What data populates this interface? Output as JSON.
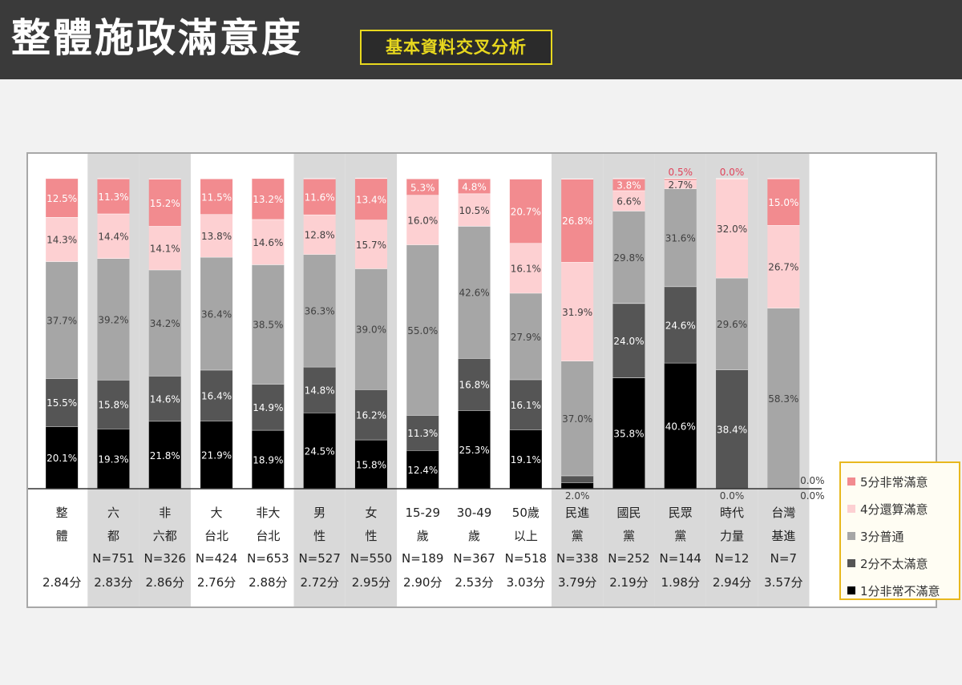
{
  "header": {
    "title": "整體施政滿意度",
    "subtitle": "基本資料交叉分析"
  },
  "colors": {
    "s5": "#f28b8f",
    "s4": "#fdd0d2",
    "s3": "#a6a6a6",
    "s2": "#555555",
    "s1": "#000000",
    "band": "#d9d9d9",
    "label_light": "#ffffff",
    "label_dark": "#404040"
  },
  "legend": {
    "items": [
      {
        "label": "5分非常滿意",
        "color": "#f28b8f"
      },
      {
        "label": "4分還算滿意",
        "color": "#fdd0d2"
      },
      {
        "label": "3分普通",
        "color": "#a6a6a6"
      },
      {
        "label": "2分不太滿意",
        "color": "#555555"
      },
      {
        "label": "1分非常不滿意",
        "color": "#000000"
      }
    ]
  },
  "chart_data": {
    "type": "bar",
    "stacked": true,
    "unit": "%",
    "legend_position": "right",
    "ylim": [
      0,
      100
    ],
    "grid": false,
    "shaded_groups": [
      1,
      2,
      5,
      6,
      10,
      11,
      12,
      13,
      14
    ],
    "categories": [
      {
        "lines": [
          "整",
          "體"
        ],
        "n": "",
        "score": "2.84分"
      },
      {
        "lines": [
          "六",
          "都"
        ],
        "n": "N=751",
        "score": "2.83分"
      },
      {
        "lines": [
          "非",
          "六都"
        ],
        "n": "N=326",
        "score": "2.86分"
      },
      {
        "lines": [
          "大",
          "台北"
        ],
        "n": "N=424",
        "score": "2.76分"
      },
      {
        "lines": [
          "非大",
          "台北"
        ],
        "n": "N=653",
        "score": "2.88分"
      },
      {
        "lines": [
          "男",
          "性"
        ],
        "n": "N=527",
        "score": "2.72分"
      },
      {
        "lines": [
          "女",
          "性"
        ],
        "n": "N=550",
        "score": "2.95分"
      },
      {
        "lines": [
          "15-29",
          "歲"
        ],
        "n": "N=189",
        "score": "2.90分"
      },
      {
        "lines": [
          "30-49",
          "歲"
        ],
        "n": "N=367",
        "score": "2.53分"
      },
      {
        "lines": [
          "50歲",
          "以上"
        ],
        "n": "N=518",
        "score": "3.03分"
      },
      {
        "lines": [
          "民進",
          "黨"
        ],
        "n": "N=338",
        "score": "3.79分"
      },
      {
        "lines": [
          "國民",
          "黨"
        ],
        "n": "N=252",
        "score": "2.19分"
      },
      {
        "lines": [
          "民眾",
          "黨"
        ],
        "n": "N=144",
        "score": "1.98分"
      },
      {
        "lines": [
          "時代",
          "力量"
        ],
        "n": "N=12",
        "score": "2.94分"
      },
      {
        "lines": [
          "台灣",
          "基進"
        ],
        "n": "N=7",
        "score": "3.57分"
      }
    ],
    "series": [
      {
        "name": "1分非常不滿意",
        "key": "s1",
        "values": [
          20.1,
          19.3,
          21.8,
          21.9,
          18.9,
          24.5,
          15.8,
          12.4,
          25.3,
          19.1,
          2.0,
          35.8,
          40.6,
          0.0,
          0.0
        ],
        "labels": [
          "20.1%",
          "19.3%",
          "21.8%",
          "21.9%",
          "18.9%",
          "24.5%",
          "15.8%",
          "12.4%",
          "25.3%",
          "19.1%",
          "2.0%",
          "35.8%",
          "40.6%",
          "0.0%",
          "0.0%"
        ]
      },
      {
        "name": "2分不太滿意",
        "key": "s2",
        "values": [
          15.5,
          15.8,
          14.6,
          16.4,
          14.9,
          14.8,
          16.2,
          11.3,
          16.8,
          16.1,
          2.2,
          24.0,
          24.6,
          38.4,
          0.0
        ],
        "labels": [
          "15.5%",
          "15.8%",
          "14.6%",
          "16.4%",
          "14.9%",
          "14.8%",
          "16.2%",
          "11.3%",
          "16.8%",
          "16.1%",
          "2.2%",
          "24.0%",
          "24.6%",
          "38.4%",
          "0.0%"
        ]
      },
      {
        "name": "3分普通",
        "key": "s3",
        "values": [
          37.7,
          39.2,
          34.2,
          36.4,
          38.5,
          36.3,
          39.0,
          55.0,
          42.6,
          27.9,
          37.0,
          29.8,
          31.6,
          29.6,
          58.3
        ],
        "labels": [
          "37.7%",
          "39.2%",
          "34.2%",
          "36.4%",
          "38.5%",
          "36.3%",
          "39.0%",
          "55.0%",
          "42.6%",
          "27.9%",
          "37.0%",
          "29.8%",
          "31.6%",
          "29.6%",
          "58.3%"
        ]
      },
      {
        "name": "4分還算滿意",
        "key": "s4",
        "values": [
          14.3,
          14.4,
          14.1,
          13.8,
          14.6,
          12.8,
          15.7,
          16.0,
          10.5,
          16.1,
          31.9,
          6.6,
          2.7,
          32.0,
          26.7
        ],
        "labels": [
          "14.3%",
          "14.4%",
          "14.1%",
          "13.8%",
          "14.6%",
          "12.8%",
          "15.7%",
          "16.0%",
          "10.5%",
          "16.1%",
          "31.9%",
          "6.6%",
          "2.7%",
          "32.0%",
          "26.7%"
        ]
      },
      {
        "name": "5分非常滿意",
        "key": "s5",
        "values": [
          12.5,
          11.3,
          15.2,
          11.5,
          13.2,
          11.6,
          13.4,
          5.3,
          4.8,
          20.7,
          26.8,
          3.8,
          0.5,
          0.0,
          15.0
        ],
        "labels": [
          "12.5%",
          "11.3%",
          "15.2%",
          "11.5%",
          "13.2%",
          "11.6%",
          "13.4%",
          "5.3%",
          "4.8%",
          "20.7%",
          "26.8%",
          "3.8%",
          "0.5%",
          "0.0%",
          "15.0%"
        ]
      }
    ]
  }
}
